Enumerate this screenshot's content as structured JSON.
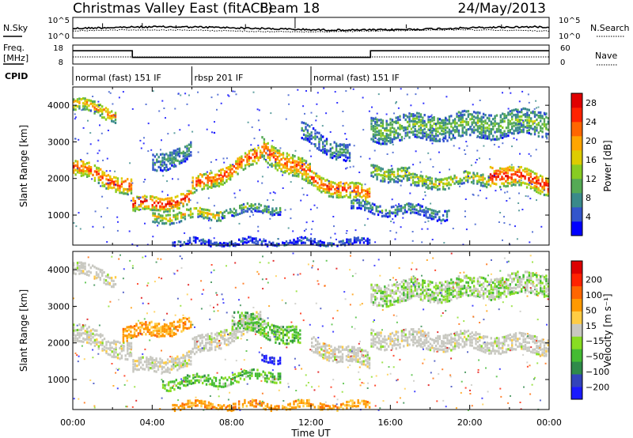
{
  "header": {
    "station": "Christmas Valley East (fitACF)",
    "beam": "Beam 18",
    "date": "24/May/2013"
  },
  "labels": {
    "nsky": "N.Sky",
    "nsearch": "N.Search",
    "freq_line1": "Freq.",
    "freq_line2": "[MHz]",
    "nave": "Nave",
    "cpid": "CPID",
    "range_label": "Slant Range [km]",
    "xlabel": "Time UT",
    "power_label": "Power [dB]",
    "velocity_label": "Velocity [m s⁻¹]"
  },
  "noise_ticks": [
    "10^5",
    "10^0"
  ],
  "freq_ticks": [
    "18",
    "8"
  ],
  "nave_ticks": [
    "60",
    "0"
  ],
  "cpid_segments": [
    {
      "label": "normal (fast) 151 IF",
      "start_h": 0,
      "end_h": 6
    },
    {
      "label": "rbsp 201 IF",
      "start_h": 6,
      "end_h": 12
    },
    {
      "label": "normal (fast) 151 IF",
      "start_h": 12,
      "end_h": 24
    }
  ],
  "freq_data": {
    "high_mhz": 15,
    "low_mhz": 11.5,
    "low_start_h": 3,
    "low_end_h": 15
  },
  "chart_data": [
    {
      "type": "heatmap",
      "name": "Power",
      "ylabel": "Slant Range [km]",
      "x_ticks": [
        "00:00",
        "04:00",
        "08:00",
        "12:00",
        "16:00",
        "20:00",
        "00:00"
      ],
      "x_range_h": [
        0,
        24
      ],
      "y_ticks": [
        1000,
        2000,
        3000,
        4000
      ],
      "y_range_km": [
        180,
        4500
      ],
      "colorbar": {
        "label": "Power [dB]",
        "ticks": [
          "4",
          "8",
          "12",
          "16",
          "20",
          "24",
          "28"
        ],
        "colors": [
          "#0000ff",
          "#3355cc",
          "#3a8a8a",
          "#55aa55",
          "#88cc22",
          "#ddcc00",
          "#ffa500",
          "#ff6600",
          "#ff2200",
          "#e00000"
        ]
      },
      "bands": [
        {
          "h0": 0,
          "h1": 3,
          "r0": 2350,
          "r1": 1800,
          "width": 450,
          "level": 0.85
        },
        {
          "h0": 3,
          "h1": 6,
          "r0": 1300,
          "r1": 1500,
          "width": 400,
          "level": 0.9
        },
        {
          "h0": 6,
          "h1": 9.5,
          "r0": 1800,
          "r1": 2700,
          "width": 450,
          "level": 0.85
        },
        {
          "h0": 9.5,
          "h1": 12,
          "r0": 2900,
          "r1": 2100,
          "width": 600,
          "level": 0.8
        },
        {
          "h0": 12,
          "h1": 15,
          "r0": 2000,
          "r1": 1550,
          "width": 450,
          "level": 0.85
        },
        {
          "h0": 15,
          "h1": 17,
          "r0": 2300,
          "r1": 2100,
          "width": 400,
          "level": 0.5
        },
        {
          "h0": 17,
          "h1": 21,
          "r0": 1950,
          "r1": 2050,
          "width": 350,
          "level": 0.55
        },
        {
          "h0": 21,
          "h1": 24,
          "r0": 2200,
          "r1": 1900,
          "width": 550,
          "level": 0.9
        },
        {
          "h0": 0,
          "h1": 2.2,
          "r0": 4100,
          "r1": 3800,
          "width": 350,
          "level": 0.7
        },
        {
          "h0": 4,
          "h1": 7.5,
          "r0": 1000,
          "r1": 1100,
          "width": 300,
          "level": 0.6
        },
        {
          "h0": 7.5,
          "h1": 10.5,
          "r0": 1150,
          "r1": 1250,
          "width": 250,
          "level": 0.4
        },
        {
          "h0": 15,
          "h1": 24,
          "r0": 3400,
          "r1": 3600,
          "width": 700,
          "level": 0.4
        },
        {
          "h0": 4,
          "h1": 6,
          "r0": 2500,
          "r1": 2800,
          "width": 500,
          "level": 0.3
        },
        {
          "h0": 11.5,
          "h1": 14,
          "r0": 3300,
          "r1": 2700,
          "width": 500,
          "level": 0.3
        },
        {
          "h0": 14,
          "h1": 19,
          "r0": 1300,
          "r1": 1100,
          "width": 300,
          "level": 0.3
        },
        {
          "h0": 5,
          "h1": 15,
          "r0": 300,
          "r1": 300,
          "width": 180,
          "level": 0.15
        }
      ]
    },
    {
      "type": "heatmap",
      "name": "Velocity",
      "ylabel": "Slant Range [km]",
      "x_ticks": [
        "00:00",
        "04:00",
        "08:00",
        "12:00",
        "16:00",
        "20:00",
        "00:00"
      ],
      "x_range_h": [
        0,
        24
      ],
      "y_ticks": [
        1000,
        2000,
        3000,
        4000
      ],
      "y_range_km": [
        180,
        4500
      ],
      "colorbar": {
        "label": "Velocity [m s⁻¹]",
        "ticks": [
          "200",
          "100",
          "50",
          "15",
          "−15",
          "−50",
          "−100",
          "−200"
        ],
        "colors": [
          "#1a1aff",
          "#3344bb",
          "#2f8a4a",
          "#44bb33",
          "#88dd22",
          "#c8c8c0",
          "#ffcc44",
          "#ff9900",
          "#ff6600",
          "#ff2200",
          "#dd0000"
        ]
      },
      "bands": [
        {
          "h0": 0,
          "h1": 3,
          "r0": 2350,
          "r1": 1800,
          "width": 500,
          "kind": "gray"
        },
        {
          "h0": 3,
          "h1": 6,
          "r0": 1400,
          "r1": 1600,
          "width": 400,
          "kind": "gray"
        },
        {
          "h0": 6,
          "h1": 9.5,
          "r0": 1900,
          "r1": 2700,
          "width": 500,
          "kind": "gray"
        },
        {
          "h0": 12,
          "h1": 15,
          "r0": 2000,
          "r1": 1550,
          "width": 450,
          "kind": "gray"
        },
        {
          "h0": 15,
          "h1": 24,
          "r0": 2200,
          "r1": 2000,
          "width": 500,
          "kind": "gray"
        },
        {
          "h0": 0,
          "h1": 2.2,
          "r0": 4100,
          "r1": 3800,
          "width": 350,
          "kind": "gray"
        },
        {
          "h0": 4.5,
          "h1": 10.5,
          "r0": 950,
          "r1": 1200,
          "width": 300,
          "kind": "green"
        },
        {
          "h0": 8,
          "h1": 11.5,
          "r0": 2700,
          "r1": 2200,
          "width": 500,
          "kind": "green"
        },
        {
          "h0": 15,
          "h1": 24,
          "r0": 3400,
          "r1": 3700,
          "width": 600,
          "kind": "greengray"
        },
        {
          "h0": 9.5,
          "h1": 10.5,
          "r0": 1650,
          "r1": 1650,
          "width": 200,
          "kind": "blue"
        },
        {
          "h0": 2.5,
          "h1": 6,
          "r0": 2300,
          "r1": 2600,
          "width": 400,
          "kind": "orange"
        },
        {
          "h0": 5,
          "h1": 15,
          "r0": 350,
          "r1": 350,
          "width": 220,
          "kind": "orange"
        }
      ]
    }
  ]
}
